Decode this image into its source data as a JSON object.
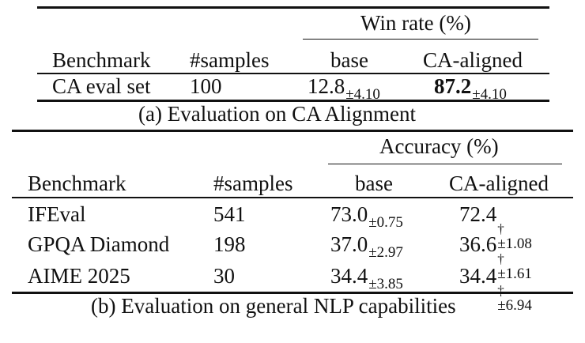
{
  "table_a": {
    "group_header": "Win rate (%)",
    "columns": [
      "Benchmark",
      "#samples",
      "base",
      "CA-aligned"
    ],
    "row": {
      "benchmark": "CA eval set",
      "samples": "100",
      "base_value": "12.8",
      "base_std": "±4.10",
      "aligned_value": "87.2",
      "aligned_std": "±4.10"
    },
    "caption": "(a) Evaluation on CA Alignment"
  },
  "table_b": {
    "group_header": "Accuracy (%)",
    "columns": [
      "Benchmark",
      "#samples",
      "base",
      "CA-aligned"
    ],
    "rows": [
      {
        "benchmark": "IFEval",
        "samples": "541",
        "base_value": "73.0",
        "base_std": "±0.75",
        "aligned_value": "72.4",
        "aligned_mark": "†",
        "aligned_std": "±1.08"
      },
      {
        "benchmark": "GPQA Diamond",
        "samples": "198",
        "base_value": "37.0",
        "base_std": "±2.97",
        "aligned_value": "36.6",
        "aligned_mark": "†",
        "aligned_std": "±1.61"
      },
      {
        "benchmark": "AIME 2025",
        "samples": "30",
        "base_value": "34.4",
        "base_std": "±3.85",
        "aligned_value": "34.4",
        "aligned_mark": "‡",
        "aligned_std": "±6.94"
      }
    ],
    "caption": "(b) Evaluation on general NLP capabilities"
  }
}
